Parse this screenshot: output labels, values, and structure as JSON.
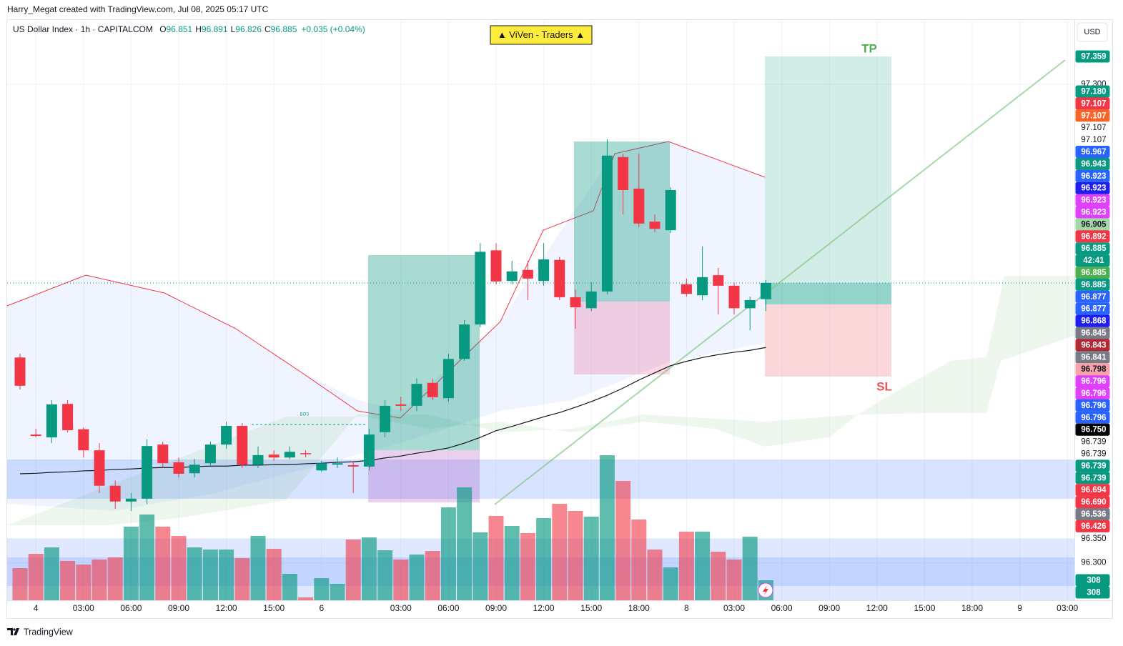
{
  "attribution": "Harry_Megat created with TradingView.com, Jul 08, 2025 05:17 UTC",
  "footer": "TradingView",
  "chart_data": {
    "type": "candlestick",
    "title": "▲ ViVen - Traders ▲",
    "currency": "USD",
    "legend": {
      "symbol": "US Dollar Index · 1h · CAPITALCOM",
      "fields": [
        {
          "key": "O",
          "value": 96.851
        },
        {
          "key": "H",
          "value": 96.891
        },
        {
          "key": "L",
          "value": 96.826
        },
        {
          "key": "C",
          "value": 96.885
        }
      ],
      "change": "+0.035 (+0.04%)"
    },
    "annotations": {
      "tp": "TP",
      "sl": "SL",
      "bos": "BOS"
    },
    "up_color": "#089981",
    "down_color": "#f23645",
    "ylim": [
      96.2216,
      97.4344
    ],
    "yticks": [
      {
        "value": 97.3,
        "label": "97.300"
      },
      {
        "value": 96.35,
        "label": "96.350"
      },
      {
        "value": 96.3,
        "label": "96.300"
      }
    ],
    "grid": true,
    "time_axis": [
      null,
      "4",
      null,
      null,
      "03:00",
      null,
      null,
      "06:00",
      null,
      null,
      "09:00",
      null,
      null,
      "12:00",
      null,
      null,
      "15:00",
      null,
      null,
      "6",
      null,
      null,
      null,
      null,
      "03:00",
      null,
      null,
      "06:00",
      null,
      null,
      "09:00",
      null,
      null,
      "12:00",
      null,
      null,
      "15:00",
      null,
      null,
      "18:00",
      null,
      null,
      "8",
      null,
      null,
      "03:00",
      null,
      null,
      "06:00",
      null,
      null,
      "09:00",
      null,
      null,
      "12:00",
      null,
      null,
      "15:00",
      null,
      null,
      "18:00",
      null,
      null,
      "9",
      null,
      null,
      "03:00"
    ],
    "open": [
      96.729,
      96.568,
      96.562,
      96.632,
      96.579,
      96.535,
      96.461,
      96.428,
      96.434,
      96.547,
      96.51,
      96.487,
      96.508,
      96.547,
      96.586,
      96.505,
      96.526,
      96.52,
      96.529,
      96.493,
      96.505,
      96.504,
      96.501,
      96.573,
      96.631,
      96.628,
      96.676,
      96.644,
      96.726,
      96.798,
      96.953,
      96.889,
      96.912,
      96.889,
      96.933,
      96.855,
      96.832,
      96.867,
      97.148,
      97.082,
      97.013,
      96.995,
      96.882,
      96.859,
      96.901,
      96.879,
      96.832,
      96.851
    ],
    "high": [
      96.737,
      96.58,
      96.64,
      96.64,
      96.583,
      96.55,
      96.472,
      96.446,
      96.558,
      96.553,
      96.52,
      96.517,
      96.553,
      96.595,
      96.592,
      96.543,
      96.535,
      96.543,
      96.535,
      96.513,
      96.52,
      96.513,
      96.58,
      96.64,
      96.647,
      96.685,
      96.685,
      96.737,
      96.807,
      96.968,
      96.968,
      96.931,
      96.931,
      96.968,
      96.939,
      96.871,
      96.886,
      97.185,
      97.155,
      97.155,
      97.028,
      97.085,
      96.894,
      96.961,
      96.916,
      96.886,
      96.856,
      96.891
    ],
    "low": [
      96.662,
      96.562,
      96.55,
      96.573,
      96.52,
      96.446,
      96.413,
      96.408,
      96.423,
      96.498,
      96.478,
      96.478,
      96.502,
      96.538,
      96.498,
      96.498,
      96.513,
      96.516,
      96.52,
      96.49,
      96.498,
      96.446,
      96.493,
      96.562,
      96.617,
      96.617,
      96.64,
      96.637,
      96.722,
      96.792,
      96.882,
      96.882,
      96.849,
      96.879,
      96.849,
      96.789,
      96.826,
      96.861,
      97.028,
      97.001,
      96.991,
      96.989,
      96.856,
      96.849,
      96.819,
      96.819,
      96.786,
      96.826
    ],
    "close": [
      96.67,
      96.565,
      96.631,
      96.577,
      96.535,
      96.461,
      96.428,
      96.434,
      96.544,
      96.508,
      96.486,
      96.505,
      96.547,
      96.586,
      96.505,
      96.525,
      96.52,
      96.532,
      96.528,
      96.508,
      96.508,
      96.501,
      96.568,
      96.628,
      96.628,
      96.674,
      96.646,
      96.726,
      96.798,
      96.95,
      96.888,
      96.909,
      96.894,
      96.934,
      96.855,
      96.834,
      96.867,
      97.151,
      97.079,
      97.009,
      96.998,
      97.079,
      96.862,
      96.897,
      96.879,
      96.832,
      96.849,
      96.885
    ],
    "volume": [
      495,
      715,
      814,
      605,
      550,
      627,
      660,
      1133,
      1320,
      1133,
      990,
      814,
      781,
      781,
      649,
      990,
      792,
      407,
      44,
      341,
      253,
      935,
      968,
      770,
      627,
      704,
      759,
      1430,
      1738,
      1045,
      1298,
      1144,
      1034,
      1265,
      1485,
      1375,
      1287,
      2233,
      1837,
      1243,
      781,
      506,
      1056,
      1056,
      748,
      627,
      979,
      308
    ],
    "volume_lim": [
      0,
      8932
    ],
    "moving_average": {
      "color": "#131722",
      "values": [
        96.486,
        96.487,
        96.489,
        96.49,
        96.492,
        96.493,
        96.495,
        96.496,
        96.498,
        96.499,
        96.499,
        96.501,
        96.502,
        96.502,
        96.504,
        96.504,
        96.505,
        96.505,
        96.507,
        96.508,
        96.51,
        96.511,
        96.514,
        96.519,
        96.523,
        96.529,
        96.534,
        96.54,
        96.55,
        96.562,
        96.576,
        96.585,
        96.595,
        96.605,
        96.614,
        96.625,
        96.637,
        96.65,
        96.665,
        96.682,
        96.697,
        96.712,
        96.721,
        96.729,
        96.735,
        96.74,
        96.744,
        96.75
      ]
    },
    "top_tag": {
      "label": "97.359",
      "color": "#089981"
    },
    "price_tags": [
      {
        "label": "97.180",
        "color": "#089981"
      },
      {
        "label": "97.107",
        "color": "#f23645"
      },
      {
        "label": "97.107",
        "color": "#f7652b"
      },
      {
        "label": "97.107",
        "color": "#ffffff"
      },
      {
        "label": "97.107",
        "color": "#ffffff"
      },
      {
        "label": "96.967",
        "color": "#2962ff"
      },
      {
        "label": "96.943",
        "color": "#089981"
      },
      {
        "label": "96.923",
        "color": "#2962ff"
      },
      {
        "label": "96.923",
        "color": "#1e1ef0"
      },
      {
        "label": "96.923",
        "color": "#e040fb"
      },
      {
        "label": "96.923",
        "color": "#e040fb"
      },
      {
        "label": "96.905",
        "color": "#a5d6a7"
      },
      {
        "label": "96.892",
        "color": "#f23645"
      },
      {
        "label": "96.885",
        "color": "#089981"
      },
      {
        "label": "42:41",
        "color": "#089981"
      },
      {
        "label": "96.885",
        "color": "#4caf50"
      },
      {
        "label": "96.885",
        "color": "#089981"
      },
      {
        "label": "96.877",
        "color": "#2962ff"
      },
      {
        "label": "96.877",
        "color": "#2962ff"
      },
      {
        "label": "96.868",
        "color": "#1e1ef0"
      },
      {
        "label": "96.845",
        "color": "#787b86"
      },
      {
        "label": "96.843",
        "color": "#b22833"
      },
      {
        "label": "96.841",
        "color": "#787b86"
      },
      {
        "label": "96.798",
        "color": "#f7a1a8"
      },
      {
        "label": "96.796",
        "color": "#e040fb"
      },
      {
        "label": "96.796",
        "color": "#e040fb"
      },
      {
        "label": "96.796",
        "color": "#2962ff"
      },
      {
        "label": "96.796",
        "color": "#2962ff"
      },
      {
        "label": "96.750",
        "color": "#000000"
      },
      {
        "label": "96.739",
        "color": "#ffffff"
      },
      {
        "label": "96.739",
        "color": "#ffffff"
      },
      {
        "label": "96.739",
        "color": "#089981"
      },
      {
        "label": "96.739",
        "color": "#089981"
      },
      {
        "label": "96.694",
        "color": "#f23645"
      },
      {
        "label": "96.690",
        "color": "#f23645"
      },
      {
        "label": "96.536",
        "color": "#787b86"
      },
      {
        "label": "96.426",
        "color": "#f23645"
      }
    ],
    "volume_tags": [
      {
        "label": "308",
        "color": "#089981"
      },
      {
        "label": "308",
        "color": "#089981"
      }
    ]
  }
}
